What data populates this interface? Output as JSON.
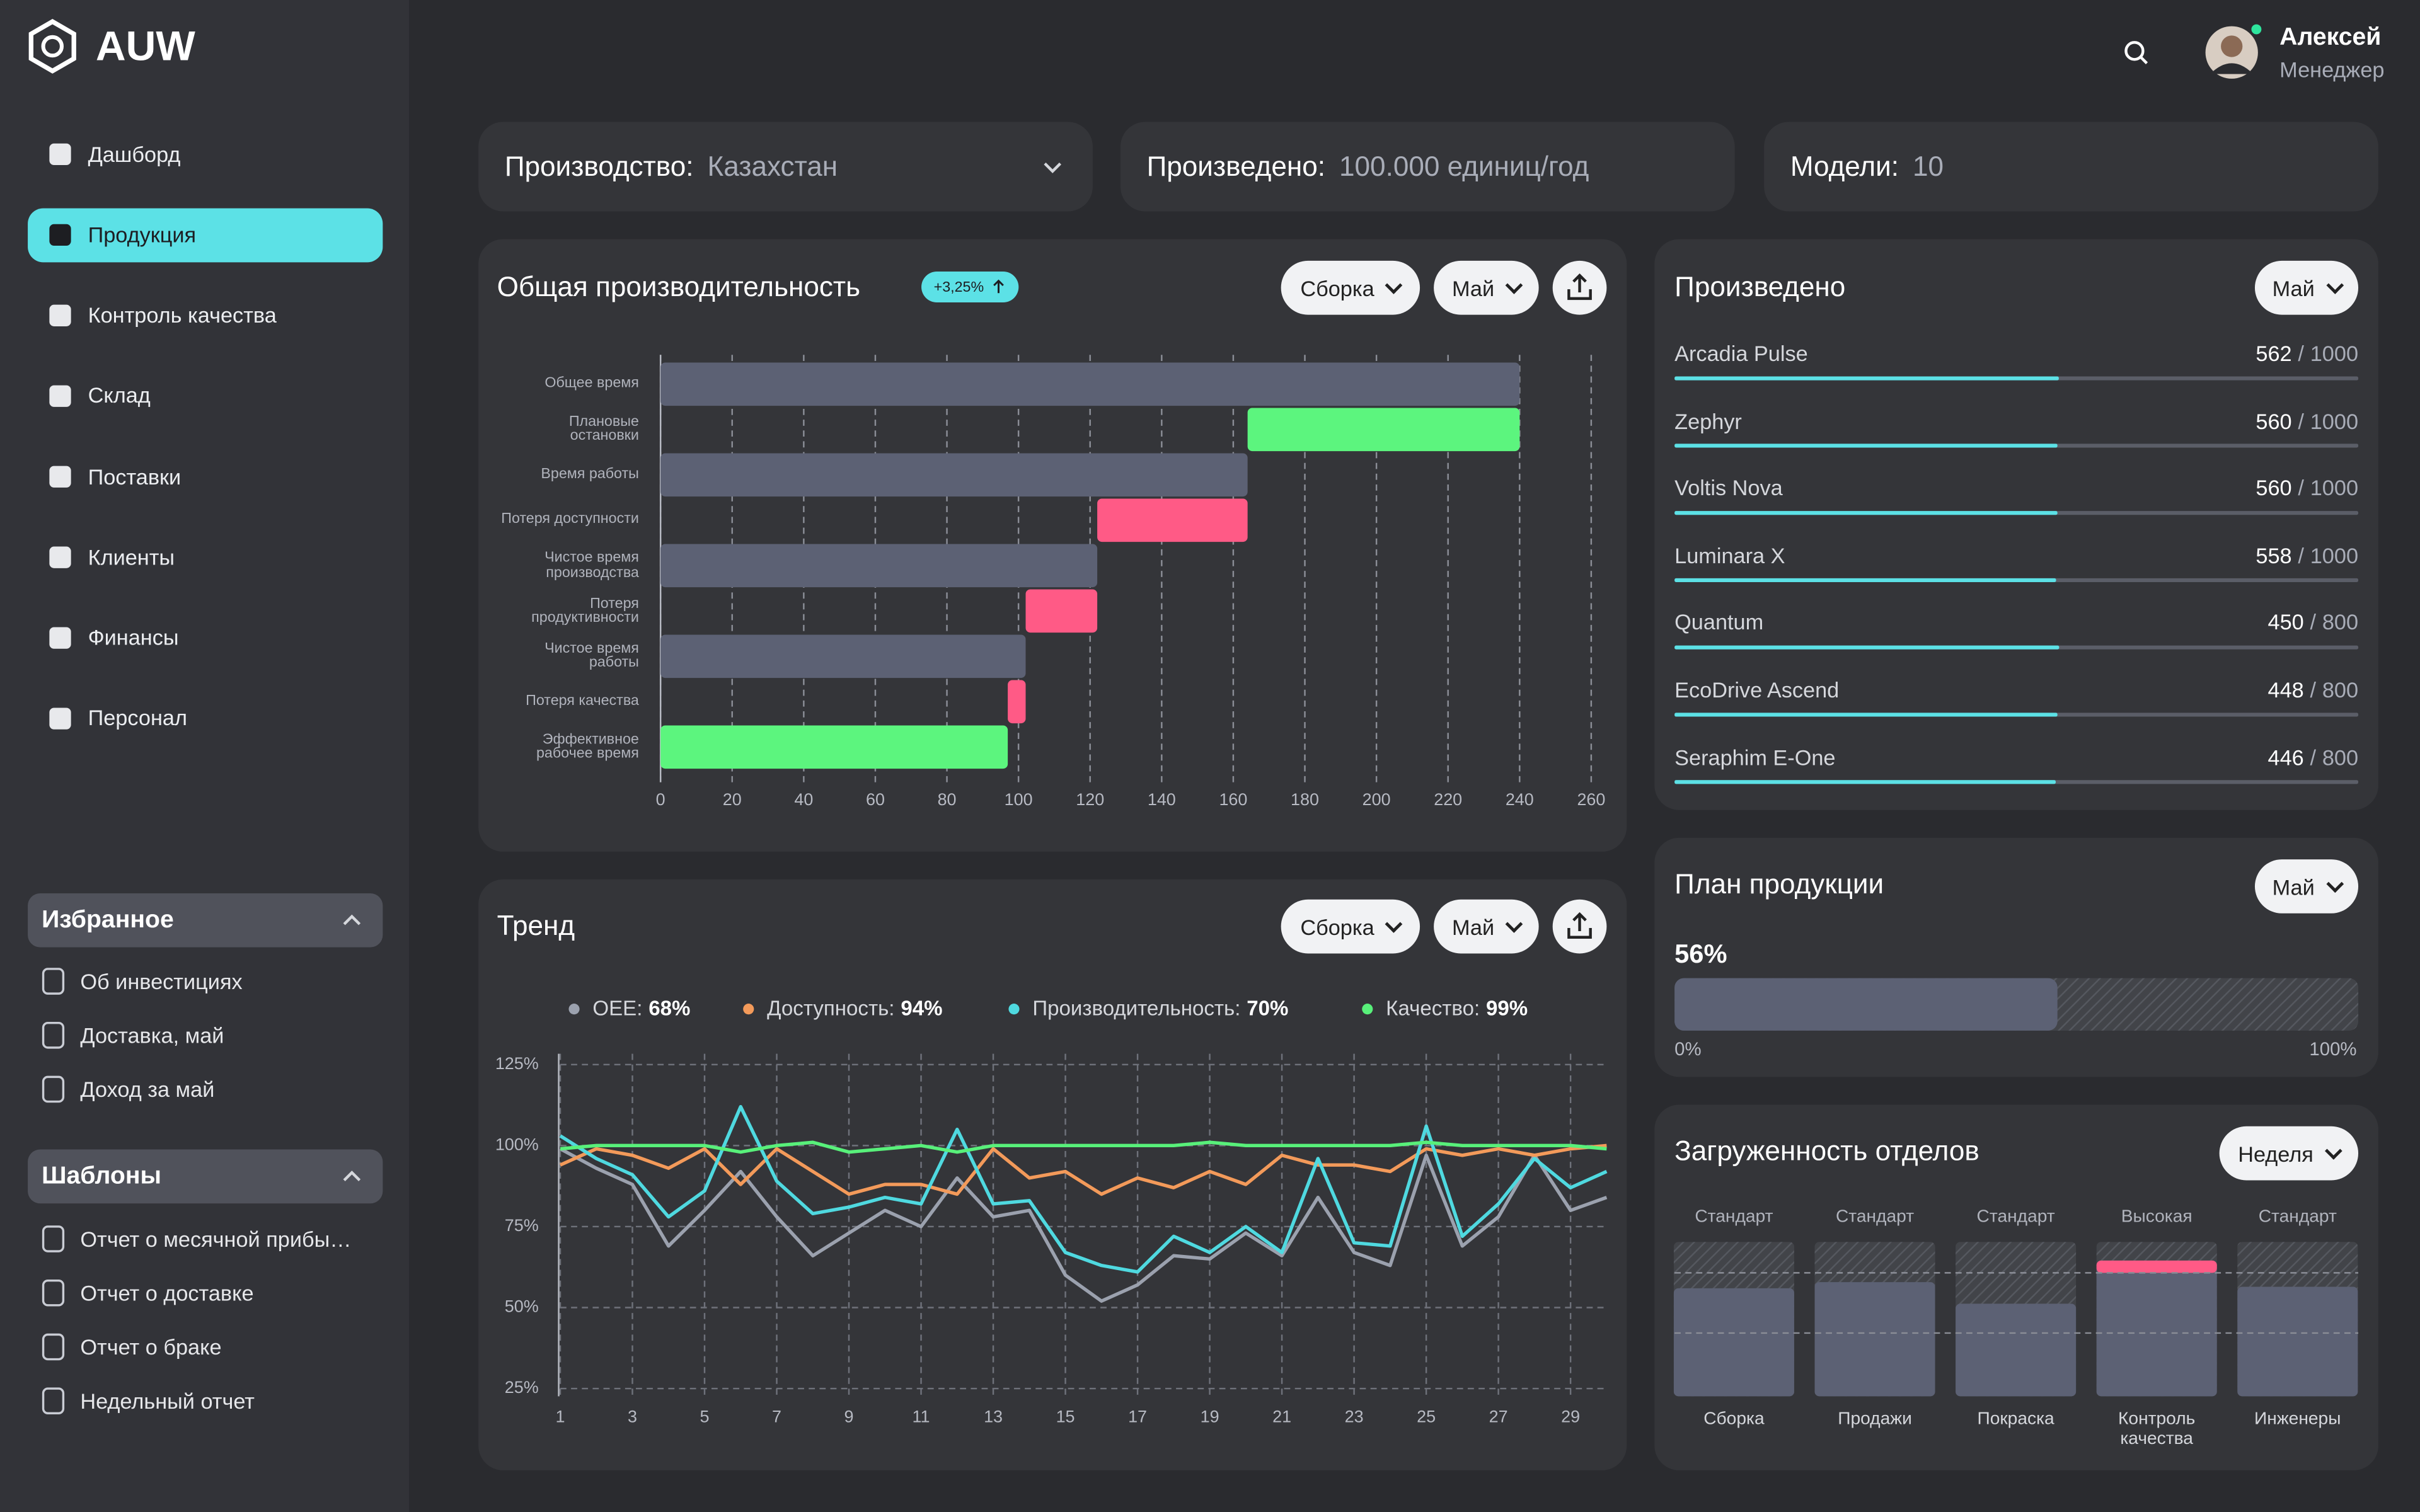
{
  "sidebar": {
    "logo": "AUW",
    "nav": [
      "Дашборд",
      "Продукция",
      "Контроль качества",
      "Склад",
      "Поставки",
      "Клиенты",
      "Финансы",
      "Персонал"
    ],
    "active": 1,
    "favorites": {
      "title": "Избранное",
      "items": [
        "Об инвестициях",
        "Доставка, май",
        "Доход за май"
      ]
    },
    "templates": {
      "title": "Шаблоны",
      "items": [
        "Отчет о месячной прибы…",
        "Отчет о доставке",
        "Отчет о браке",
        "Недельный отчет"
      ]
    }
  },
  "user": {
    "name": "Алексей",
    "role": "Менеджер"
  },
  "stats": [
    {
      "label": "Производство:",
      "value": "Казахстан"
    },
    {
      "label": "Произведено:",
      "value": "100.000 единиц/год"
    },
    {
      "label": "Модели:",
      "value": 10
    }
  ],
  "performance": {
    "title": "Общая производительность",
    "badge": "+3,25%",
    "filters": [
      "Сборка",
      "Май"
    ],
    "chart_data": {
      "type": "bar",
      "categories": [
        "Общее время",
        "Плановые\nостановки",
        "Время работы",
        "Потеря доступности",
        "Чистое время\nпроизводства",
        "Потеря\nпродуктивности",
        "Чистое время\nработы",
        "Потеря качества",
        "Эффективное\nрабочее время"
      ],
      "values": [
        240,
        76,
        164,
        42,
        122,
        20,
        102,
        5,
        97
      ],
      "colors": [
        "#5c6174",
        "#5cf57e",
        "#5c6174",
        "#ff5a86",
        "#5c6174",
        "#ff5a86",
        "#5c6174",
        "#ff5a86",
        "#5cf57e"
      ],
      "xlim": [
        0,
        260
      ],
      "xticks": [
        0,
        20,
        40,
        60,
        80,
        100,
        120,
        140,
        160,
        180,
        200,
        220,
        240,
        260
      ],
      "grid": true
    }
  },
  "produced": {
    "title": "Произведено",
    "filter": "Май",
    "separator": "/",
    "color": "#5ce1e6",
    "items": [
      {
        "name": "Arcadia Pulse",
        "value": 562,
        "total": 1000
      },
      {
        "name": "Zephyr",
        "value": 560,
        "total": 1000
      },
      {
        "name": "Voltis Nova",
        "value": 560,
        "total": 1000
      },
      {
        "name": "Luminara X",
        "value": 558,
        "total": 1000
      },
      {
        "name": "Quantum",
        "value": 450,
        "total": 800
      },
      {
        "name": "EcoDrive Ascend",
        "value": 448,
        "total": 800
      },
      {
        "name": "Seraphim E-One",
        "value": 446,
        "total": 800
      }
    ]
  },
  "trend": {
    "title": "Тренд",
    "filters": [
      "Сборка",
      "Май"
    ],
    "chart_data": {
      "type": "line",
      "x": [
        1,
        2,
        3,
        4,
        5,
        6,
        7,
        8,
        9,
        10,
        11,
        12,
        13,
        14,
        15,
        16,
        17,
        18,
        19,
        20,
        21,
        22,
        23,
        24,
        25,
        26,
        27,
        28,
        29,
        30
      ],
      "series": [
        {
          "name": "OEE:",
          "summary": "68%",
          "color": "#9ba1ae",
          "values": [
            99,
            93,
            88,
            69,
            80,
            92,
            78,
            66,
            73,
            80,
            75,
            90,
            78,
            80,
            60,
            52,
            57,
            66,
            65,
            73,
            66,
            84,
            67,
            63,
            97,
            69,
            78,
            97,
            80,
            84
          ]
        },
        {
          "name": "Доступность:",
          "summary": "94%",
          "color": "#f39a5a",
          "values": [
            94,
            99,
            97,
            93,
            99,
            88,
            99,
            92,
            85,
            88,
            88,
            85,
            99,
            90,
            92,
            85,
            90,
            87,
            92,
            88,
            97,
            94,
            94,
            92,
            99,
            97,
            99,
            97,
            99,
            100
          ]
        },
        {
          "name": "Производительность:",
          "summary": "70%",
          "color": "#4fd9e0",
          "values": [
            103,
            96,
            91,
            78,
            86,
            112,
            89,
            79,
            81,
            84,
            82,
            105,
            82,
            83,
            67,
            63,
            61,
            72,
            67,
            75,
            67,
            96,
            70,
            69,
            106,
            72,
            82,
            96,
            87,
            92
          ]
        },
        {
          "name": "Качество:",
          "summary": "99%",
          "color": "#58f07a",
          "values": [
            99,
            100,
            100,
            100,
            100,
            98,
            100,
            101,
            98,
            99,
            100,
            98,
            100,
            100,
            100,
            100,
            100,
            100,
            101,
            100,
            100,
            100,
            100,
            100,
            101,
            100,
            100,
            100,
            100,
            99
          ]
        }
      ],
      "xlim": [
        1,
        30
      ],
      "xticks": [
        1,
        3,
        5,
        7,
        9,
        11,
        13,
        15,
        17,
        19,
        21,
        23,
        25,
        27,
        29
      ],
      "ylim": [
        25,
        125
      ],
      "yticks": [
        {
          "value": 25,
          "label": "25%"
        },
        {
          "value": 50,
          "label": "50%"
        },
        {
          "value": 75,
          "label": "75%"
        },
        {
          "value": 100,
          "label": "100%"
        },
        {
          "value": 125,
          "label": "125%"
        }
      ],
      "grid": true
    }
  },
  "plan": {
    "title": "План продукции",
    "filter": "Май",
    "value": 56,
    "value_label": "56%",
    "min": {
      "value": 0,
      "label": "0%"
    },
    "max": {
      "value": 100,
      "label": "100%"
    }
  },
  "departments": {
    "title": "Загруженность отделов",
    "filter": "Неделя",
    "chart_data": {
      "type": "bar",
      "categories": [
        "Сборка",
        "Продажи",
        "Покраска",
        "Контроль\nкачества",
        "Инженеры"
      ],
      "statuses": [
        "Стандарт",
        "Стандарт",
        "Стандарт",
        "Высокая",
        "Стандарт"
      ],
      "values": [
        70,
        74,
        60,
        88,
        71
      ],
      "color": "#5c6174",
      "highlight": [
        null,
        null,
        null,
        "#ff5a86",
        null
      ],
      "ylim": [
        0,
        100
      ]
    }
  }
}
